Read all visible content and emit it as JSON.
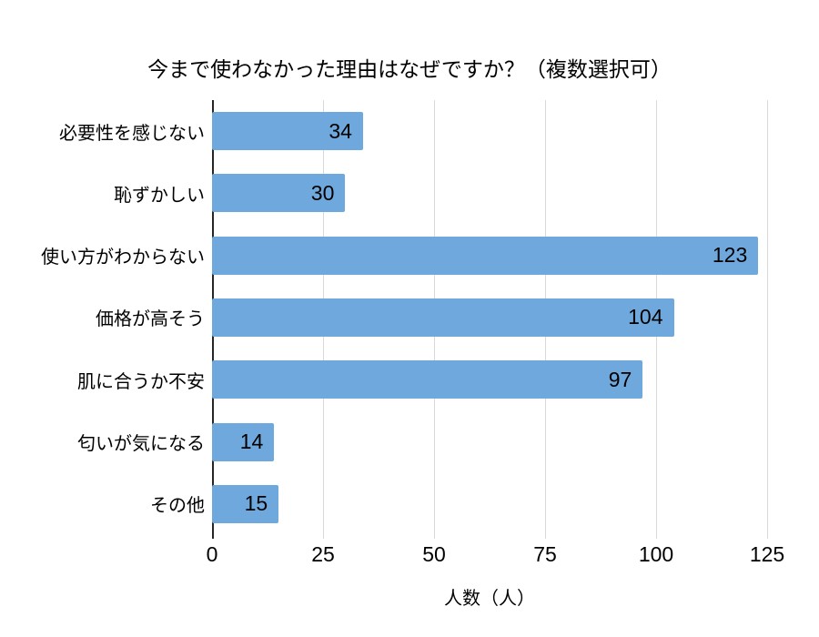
{
  "chart_data": {
    "type": "bar",
    "orientation": "horizontal",
    "title": "今まで使わなかった理由はなぜですか？（複数選択可）",
    "xlabel": "人数（人）",
    "ylabel": "",
    "categories": [
      "必要性を感じない",
      "恥ずかしい",
      "使い方がわからない",
      "価格が高そう",
      "肌に合うか不安",
      "匂いが気になる",
      "その他"
    ],
    "values": [
      34,
      30,
      123,
      104,
      97,
      14,
      15
    ],
    "xlim": [
      0,
      125
    ],
    "xticks": [
      0,
      25,
      50,
      75,
      100,
      125
    ],
    "grid": true,
    "legend": false,
    "value_label_position": "inside-end",
    "colors": {
      "bar": "#6fa8dc",
      "gridline": "#d9d9d9",
      "axis_line": "#262626",
      "text": "#000000",
      "background": "#ffffff"
    }
  }
}
